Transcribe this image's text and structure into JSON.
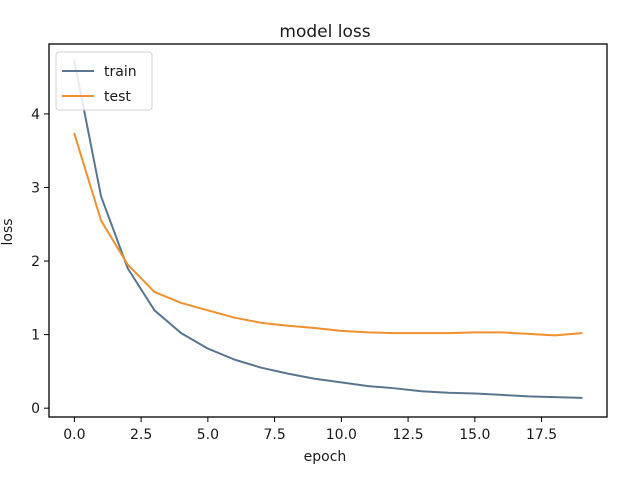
{
  "chart_data": {
    "type": "line",
    "title": "model loss",
    "xlabel": "epoch",
    "ylabel": "loss",
    "xlim": [
      -0.95,
      19.95
    ],
    "ylim": [
      -0.12,
      4.95
    ],
    "xticks": [
      0.0,
      2.5,
      5.0,
      7.5,
      10.0,
      12.5,
      15.0,
      17.5
    ],
    "xtick_labels": [
      "0.0",
      "2.5",
      "5.0",
      "7.5",
      "10.0",
      "12.5",
      "15.0",
      "17.5"
    ],
    "yticks": [
      0,
      1,
      2,
      3,
      4
    ],
    "ytick_labels": [
      "0",
      "1",
      "2",
      "3",
      "4"
    ],
    "grid": false,
    "legend_position": "top-left",
    "x": [
      0,
      1,
      2,
      3,
      4,
      5,
      6,
      7,
      8,
      9,
      10,
      11,
      12,
      13,
      14,
      15,
      16,
      17,
      18,
      19
    ],
    "series": [
      {
        "name": "train",
        "color": "#5a7590",
        "values": [
          4.72,
          2.88,
          1.9,
          1.33,
          1.02,
          0.81,
          0.66,
          0.55,
          0.47,
          0.4,
          0.35,
          0.3,
          0.27,
          0.23,
          0.21,
          0.2,
          0.18,
          0.16,
          0.15,
          0.14
        ]
      },
      {
        "name": "test",
        "color": "#f0902f",
        "values": [
          3.73,
          2.55,
          1.95,
          1.58,
          1.43,
          1.33,
          1.23,
          1.16,
          1.12,
          1.09,
          1.05,
          1.03,
          1.02,
          1.02,
          1.02,
          1.03,
          1.03,
          1.01,
          0.99,
          1.02
        ]
      }
    ]
  }
}
